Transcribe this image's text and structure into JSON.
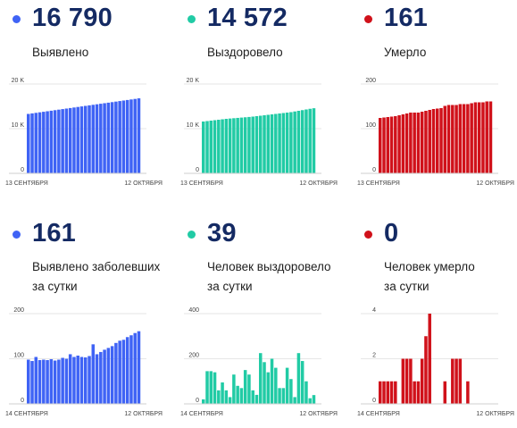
{
  "panels": [
    {
      "value": "16 790",
      "label": "Выявлено",
      "color": "#3f63f5",
      "chart_data": {
        "type": "bar",
        "yticks": [
          0,
          10000,
          20000
        ],
        "ytick_labels": [
          "0",
          "10 K",
          "20 K"
        ],
        "ylim": [
          0,
          20000
        ],
        "x_start_label": "13 СЕНТЯБРЯ",
        "x_end_label": "12 ОКТЯБРЯ",
        "values": [
          13300,
          13420,
          13540,
          13660,
          13780,
          13900,
          14020,
          14140,
          14260,
          14380,
          14500,
          14620,
          14740,
          14860,
          14980,
          15100,
          15220,
          15340,
          15460,
          15580,
          15700,
          15820,
          15940,
          16060,
          16180,
          16300,
          16420,
          16540,
          16660,
          16790
        ]
      }
    },
    {
      "value": "14 572",
      "label": "Выздоровело",
      "color": "#21cba5",
      "chart_data": {
        "type": "bar",
        "yticks": [
          0,
          10000,
          20000
        ],
        "ytick_labels": [
          "0",
          "10 K",
          "20 K"
        ],
        "ylim": [
          0,
          20000
        ],
        "x_start_label": "13 СЕНТЯБРЯ",
        "x_end_label": "12 ОКТЯБРЯ",
        "values": [
          11600,
          11700,
          11800,
          11900,
          12000,
          12100,
          12200,
          12270,
          12340,
          12410,
          12480,
          12550,
          12620,
          12700,
          12800,
          12900,
          13000,
          13100,
          13200,
          13300,
          13400,
          13500,
          13600,
          13700,
          13850,
          14000,
          14150,
          14300,
          14450,
          14572
        ]
      }
    },
    {
      "value": "161",
      "label": "Умерло",
      "color": "#d0111a",
      "chart_data": {
        "type": "bar",
        "yticks": [
          0,
          100,
          200
        ],
        "ytick_labels": [
          "0",
          "100",
          "200"
        ],
        "ylim": [
          0,
          200
        ],
        "x_start_label": "13 СЕНТЯБРЯ",
        "x_end_label": "12 ОКТЯБРЯ",
        "values": [
          124,
          125,
          126,
          127,
          128,
          130,
          132,
          134,
          136,
          136,
          136,
          138,
          140,
          142,
          144,
          145,
          146,
          151,
          153,
          153,
          153,
          155,
          155,
          155,
          157,
          159,
          159,
          159,
          161,
          161
        ]
      }
    },
    {
      "value": "161",
      "label": [
        "Выявлено заболевших",
        "за сутки"
      ],
      "color": "#3f63f5",
      "chart_data": {
        "type": "bar",
        "yticks": [
          0,
          100,
          200
        ],
        "ytick_labels": [
          "0",
          "100",
          "200"
        ],
        "ylim": [
          0,
          200
        ],
        "x_start_label": "14 СЕНТЯБРЯ",
        "x_end_label": "12 ОКТЯБРЯ",
        "values": [
          98,
          95,
          104,
          97,
          98,
          97,
          99,
          96,
          98,
          102,
          100,
          110,
          104,
          107,
          104,
          103,
          106,
          132,
          110,
          115,
          120,
          124,
          128,
          135,
          140,
          142,
          148,
          152,
          157,
          161
        ]
      }
    },
    {
      "value": "39",
      "label": [
        "Человек выздоровело",
        "за сутки"
      ],
      "color": "#21cba5",
      "chart_data": {
        "type": "bar",
        "yticks": [
          0,
          200,
          400
        ],
        "ytick_labels": [
          "0",
          "200",
          "400"
        ],
        "ylim": [
          0,
          400
        ],
        "x_start_label": "14 СЕНТЯБРЯ",
        "x_end_label": "12 ОКТЯБРЯ",
        "values": [
          20,
          145,
          145,
          140,
          60,
          95,
          60,
          30,
          130,
          80,
          70,
          150,
          130,
          60,
          40,
          225,
          185,
          140,
          200,
          160,
          70,
          70,
          160,
          110,
          30,
          225,
          190,
          100,
          25,
          39
        ]
      }
    },
    {
      "value": "0",
      "label": [
        "Человек умерло",
        "за сутки"
      ],
      "color": "#d0111a",
      "chart_data": {
        "type": "bar",
        "yticks": [
          0,
          2,
          4
        ],
        "ytick_labels": [
          "0",
          "2",
          "4"
        ],
        "ylim": [
          0,
          4
        ],
        "x_start_label": "14 СЕНТЯБРЯ",
        "x_end_label": "12 ОКТЯБРЯ",
        "values": [
          1,
          1,
          1,
          1,
          1,
          0,
          2,
          2,
          2,
          1,
          1,
          2,
          3,
          4,
          0,
          0,
          0,
          1,
          0,
          2,
          2,
          2,
          0,
          1,
          0,
          0,
          0,
          0,
          0,
          0
        ]
      }
    }
  ]
}
